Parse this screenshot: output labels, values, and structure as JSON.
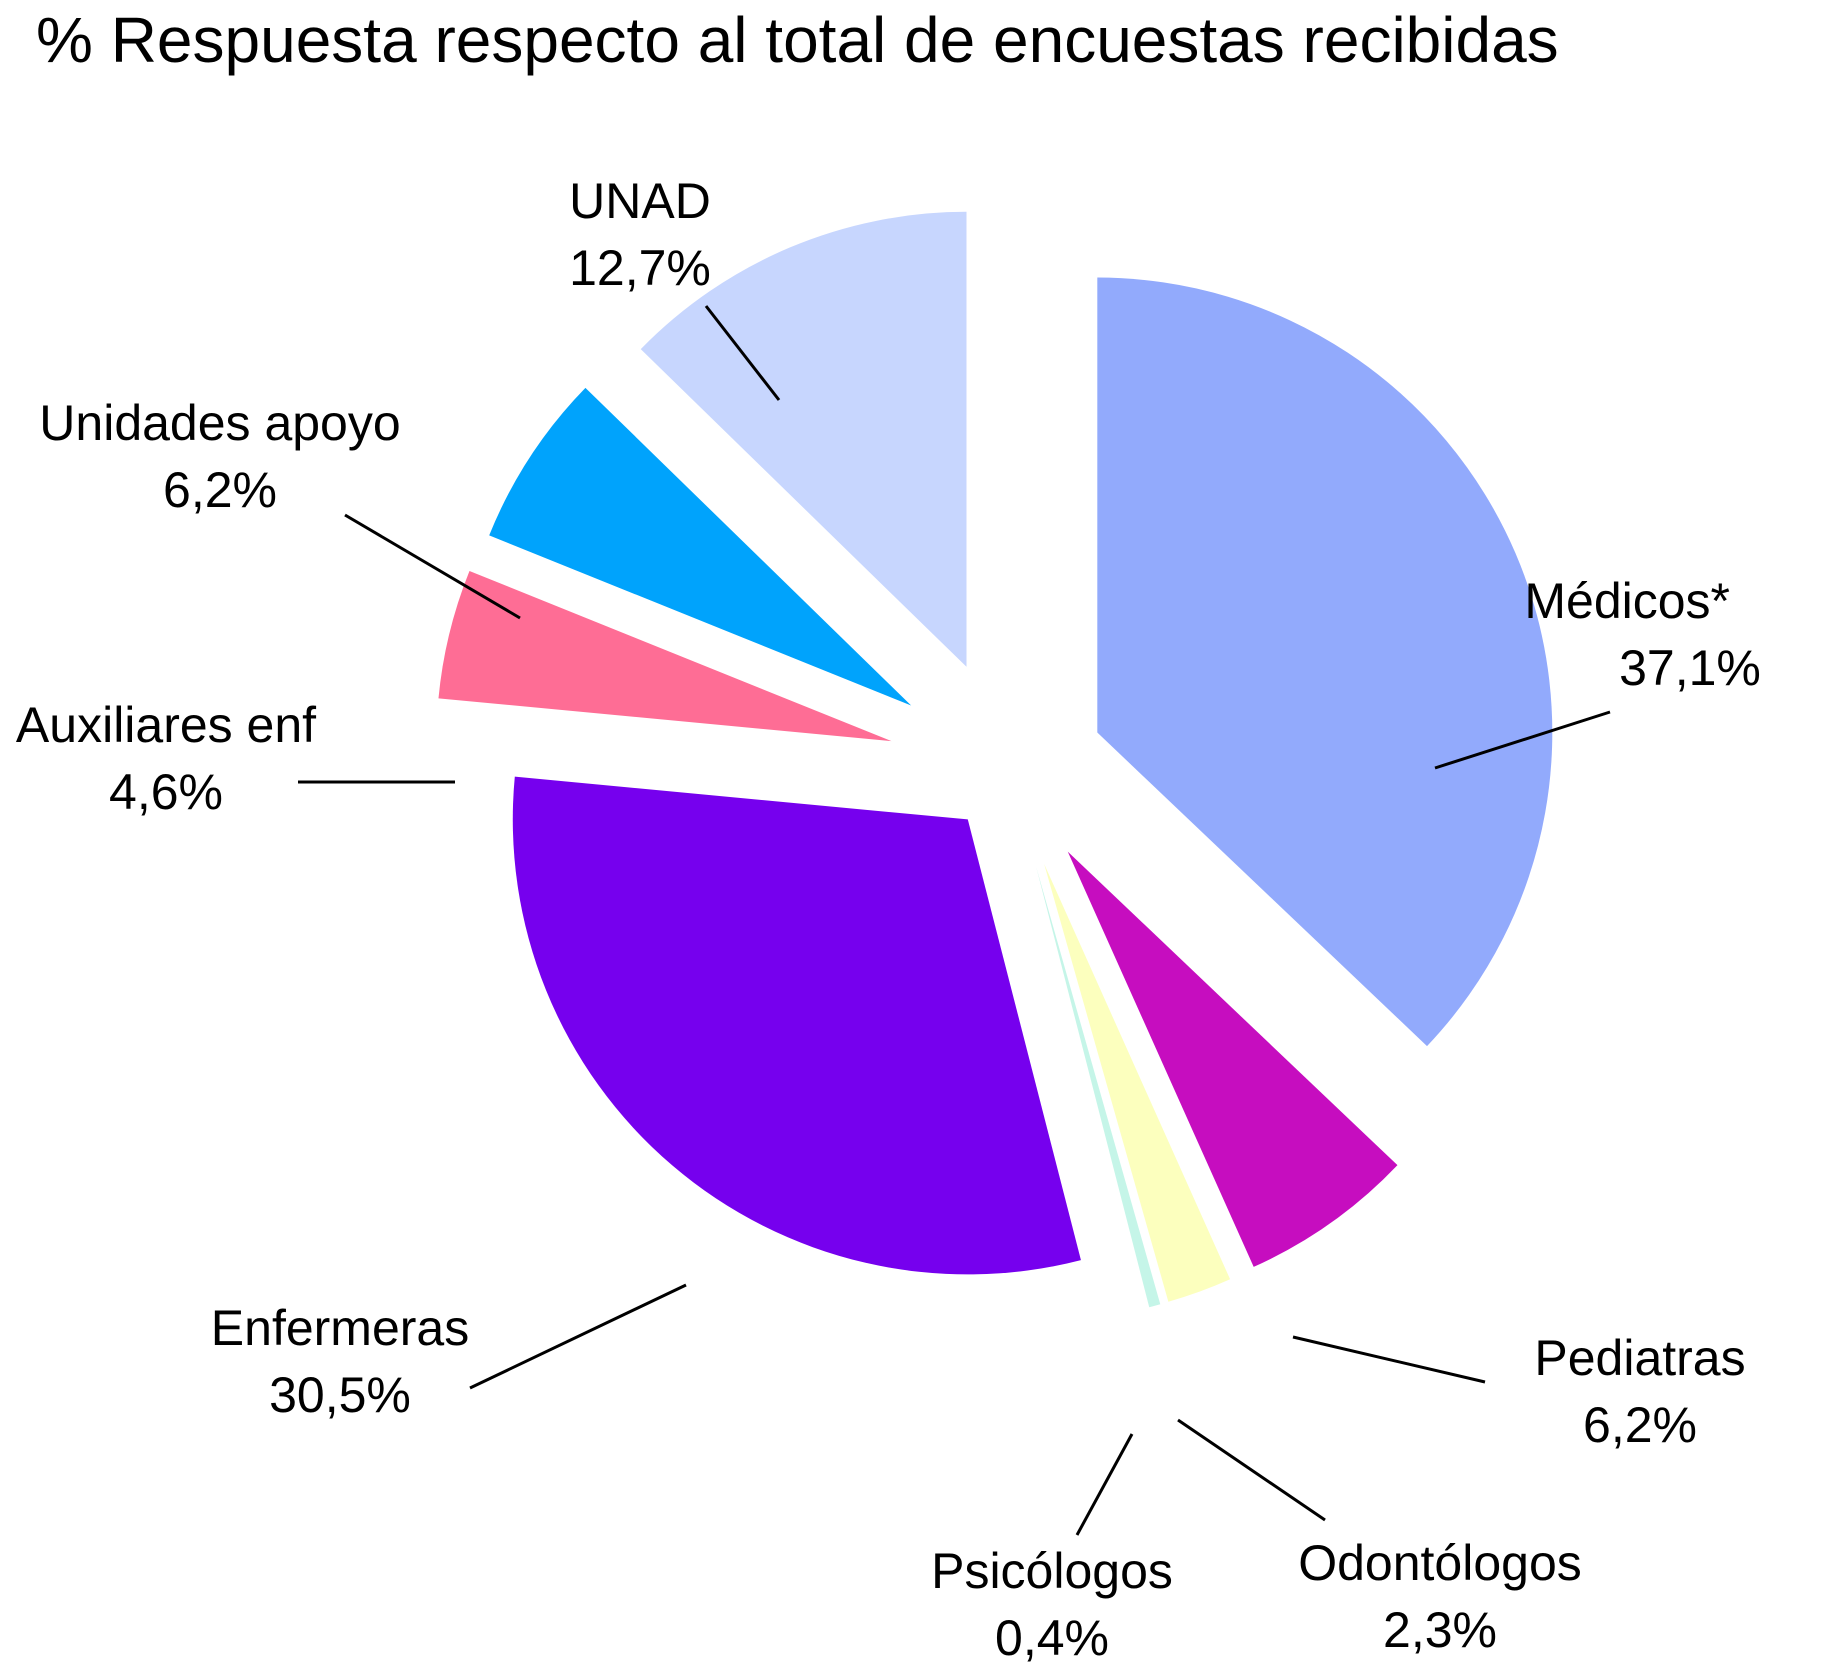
{
  "chart_data": {
    "type": "pie",
    "title": "% Respuesta respecto al total de encuestas recibidas",
    "slices": [
      {
        "label": "Médicos*",
        "value_label": "37,1%",
        "value": 37.1,
        "color": "#92aafc"
      },
      {
        "label": "Pediatras",
        "value_label": "6,2%",
        "value": 6.2,
        "color": "#c60dbf"
      },
      {
        "label": "Odontólogos",
        "value_label": "2,3%",
        "value": 2.3,
        "color": "#fcffbe"
      },
      {
        "label": "Psicólogos",
        "value_label": "0,4%",
        "value": 0.4,
        "color": "#c5f5e8"
      },
      {
        "label": "Enfermeras",
        "value_label": "30,5%",
        "value": 30.5,
        "color": "#7600ee"
      },
      {
        "label": "Auxiliares enf",
        "value_label": "4,6%",
        "value": 4.6,
        "color": "#fe6d95"
      },
      {
        "label": "Unidades apoyo",
        "value_label": "6,2%",
        "value": 6.2,
        "color": "#00a3fc"
      },
      {
        "label": "UNAD",
        "value_label": "12,7%",
        "value": 12.7,
        "color": "#c7d6fe"
      }
    ]
  }
}
